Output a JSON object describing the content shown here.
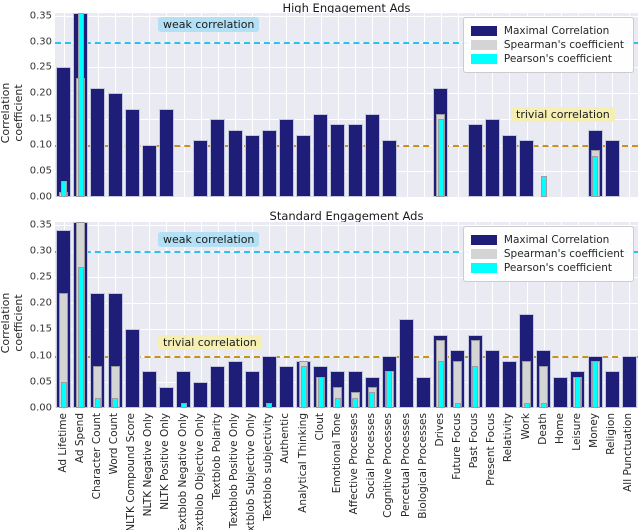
{
  "figure": {
    "ylabel": "Correlation coefficient",
    "ymax_note": "y axis 0.00 to 0.35, bars above 0.355 are clipped",
    "legend": {
      "maximal_label": "Maximal Correlation",
      "spearman_label": "Spearman's coefficient",
      "pearson_label": "Pearson's coefficient"
    },
    "annotations": {
      "weak": "weak correlation",
      "trivial": "trivial correlation"
    },
    "colors": {
      "maximal": "#1e1e78",
      "spearman": "#d4d4d4",
      "pearson": "#00ffff",
      "weak_line": "#2cc1f0",
      "trivial_line": "#c9931a",
      "plot_background": "#eaeaf2",
      "weak_label_background": "#b3e0f4",
      "trivial_label_background": "#f6efb4"
    }
  },
  "chart_data": [
    {
      "type": "bar",
      "title": "High Engagement Ads",
      "ylabel": "Correlation coefficient",
      "ylim": [
        0,
        0.355
      ],
      "yticks": [
        0.0,
        0.05,
        0.1,
        0.15,
        0.2,
        0.25,
        0.3,
        0.35
      ],
      "grid": true,
      "legend_position": "upper right",
      "reference_lines": [
        {
          "label": "weak correlation",
          "value": 0.3
        },
        {
          "label": "trivial correlation",
          "value": 0.1
        }
      ],
      "categories": [
        "Ad Lifetime",
        "Ad Spend",
        "Character Count",
        "Word Count",
        "NLTK Compound Score",
        "NLTK Negative Only",
        "NLTK Positive Only",
        "Textblob Negative Only",
        "Textblob Objective Only",
        "Textblob Polarity",
        "Textblob Positive Only",
        "Textblob Subjective Only",
        "Textblob subjectivity",
        "Authentic",
        "Analytical Thinking",
        "Clout",
        "Emotional Tone",
        "Affective Processes",
        "Social Processes",
        "Cognitive Processes",
        "Percetual Processes",
        "Biological Processes",
        "Drives",
        "Future Focus",
        "Past Focus",
        "Present Focus",
        "Relativity",
        "Work",
        "Death",
        "Home",
        "Leisure",
        "Money",
        "Religion",
        "All Punctuation"
      ],
      "series": [
        {
          "name": "Maximal Correlation",
          "values": [
            0.25,
            0.36,
            0.21,
            0.2,
            0.17,
            0.1,
            0.17,
            null,
            0.11,
            0.15,
            0.13,
            0.12,
            0.13,
            0.15,
            0.12,
            0.16,
            0.14,
            0.14,
            0.16,
            0.11,
            null,
            null,
            0.21,
            null,
            0.14,
            0.15,
            0.12,
            0.11,
            null,
            null,
            null,
            0.13,
            0.11,
            null
          ]
        },
        {
          "name": "Spearman's coefficient",
          "values": [
            0.01,
            0.23,
            null,
            null,
            null,
            null,
            null,
            null,
            null,
            null,
            null,
            null,
            null,
            null,
            null,
            null,
            null,
            null,
            null,
            null,
            null,
            null,
            0.16,
            null,
            null,
            null,
            null,
            null,
            null,
            null,
            null,
            0.09,
            null,
            null
          ]
        },
        {
          "name": "Pearson's coefficient",
          "values": [
            0.03,
            0.36,
            null,
            null,
            null,
            null,
            null,
            null,
            null,
            null,
            null,
            null,
            null,
            null,
            null,
            null,
            null,
            null,
            null,
            null,
            null,
            null,
            0.15,
            null,
            null,
            null,
            null,
            null,
            0.04,
            null,
            null,
            0.08,
            null,
            null
          ]
        }
      ]
    },
    {
      "type": "bar",
      "title": "Standard Engagement Ads",
      "ylabel": "Correlation coefficient",
      "ylim": [
        0,
        0.355
      ],
      "yticks": [
        0.0,
        0.05,
        0.1,
        0.15,
        0.2,
        0.25,
        0.3,
        0.35
      ],
      "grid": true,
      "legend_position": "upper right",
      "reference_lines": [
        {
          "label": "weak correlation",
          "value": 0.3
        },
        {
          "label": "trivial correlation",
          "value": 0.1
        }
      ],
      "categories": [
        "Ad Lifetime",
        "Ad Spend",
        "Character Count",
        "Word Count",
        "NLTK Compound Score",
        "NLTK Negative Only",
        "NLTK Positive Only",
        "Textblob Negative Only",
        "Textblob Objective Only",
        "Textblob Polarity",
        "Textblob Positive Only",
        "Textblob Subjective Only",
        "Textblob subjectivity",
        "Authentic",
        "Analytical Thinking",
        "Clout",
        "Emotional Tone",
        "Affective Processes",
        "Social Processes",
        "Cognitive Processes",
        "Percetual Processes",
        "Biological Processes",
        "Drives",
        "Future Focus",
        "Past Focus",
        "Present Focus",
        "Relativity",
        "Work",
        "Death",
        "Home",
        "Leisure",
        "Money",
        "Religion",
        "All Punctuation"
      ],
      "series": [
        {
          "name": "Maximal Correlation",
          "values": [
            0.34,
            0.36,
            0.22,
            0.22,
            0.15,
            0.07,
            0.04,
            0.07,
            0.05,
            0.08,
            0.09,
            0.07,
            0.1,
            0.08,
            0.09,
            0.08,
            0.07,
            0.07,
            0.06,
            0.1,
            0.17,
            0.06,
            0.14,
            0.11,
            0.14,
            0.11,
            0.09,
            0.18,
            0.11,
            0.06,
            0.07,
            0.1,
            0.07,
            0.1
          ]
        },
        {
          "name": "Spearman's coefficient",
          "values": [
            0.22,
            0.36,
            0.08,
            0.08,
            null,
            null,
            null,
            null,
            null,
            null,
            null,
            null,
            null,
            null,
            0.09,
            0.06,
            0.04,
            0.03,
            0.04,
            0.07,
            null,
            null,
            0.13,
            0.09,
            0.13,
            null,
            null,
            0.09,
            0.08,
            null,
            0.06,
            0.09,
            null,
            null
          ]
        },
        {
          "name": "Pearson's coefficient",
          "values": [
            0.05,
            0.27,
            0.02,
            0.02,
            null,
            null,
            null,
            0.01,
            null,
            null,
            null,
            null,
            0.01,
            null,
            0.08,
            0.06,
            0.02,
            0.02,
            0.03,
            0.07,
            null,
            null,
            0.09,
            0.01,
            0.08,
            null,
            null,
            0.01,
            0.01,
            null,
            0.06,
            0.09,
            null,
            null
          ]
        }
      ]
    }
  ]
}
